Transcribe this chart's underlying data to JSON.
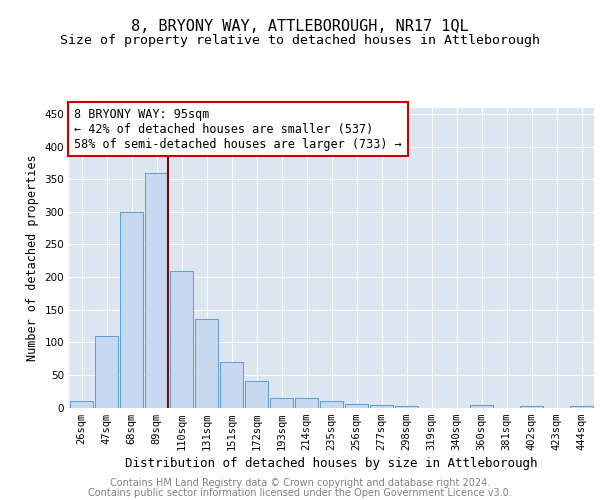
{
  "title": "8, BRYONY WAY, ATTLEBOROUGH, NR17 1QL",
  "subtitle": "Size of property relative to detached houses in Attleborough",
  "xlabel": "Distribution of detached houses by size in Attleborough",
  "ylabel": "Number of detached properties",
  "bar_labels": [
    "26sqm",
    "47sqm",
    "68sqm",
    "89sqm",
    "110sqm",
    "131sqm",
    "151sqm",
    "172sqm",
    "193sqm",
    "214sqm",
    "235sqm",
    "256sqm",
    "277sqm",
    "298sqm",
    "319sqm",
    "340sqm",
    "360sqm",
    "381sqm",
    "402sqm",
    "423sqm",
    "444sqm"
  ],
  "bar_values": [
    10,
    110,
    300,
    360,
    210,
    135,
    70,
    40,
    15,
    15,
    10,
    5,
    4,
    2,
    0,
    0,
    4,
    0,
    3,
    0,
    3
  ],
  "bar_color": "#c6d9f0",
  "bar_edgecolor": "#5b9bd5",
  "background_color": "#dce6f1",
  "annotation_box_text": "8 BRYONY WAY: 95sqm\n← 42% of detached houses are smaller (537)\n58% of semi-detached houses are larger (733) →",
  "redline_x": 3.47,
  "ylim": [
    0,
    460
  ],
  "yticks": [
    0,
    50,
    100,
    150,
    200,
    250,
    300,
    350,
    400,
    450
  ],
  "footer_line1": "Contains HM Land Registry data © Crown copyright and database right 2024.",
  "footer_line2": "Contains public sector information licensed under the Open Government Licence v3.0.",
  "title_fontsize": 11,
  "subtitle_fontsize": 9.5,
  "xlabel_fontsize": 9,
  "ylabel_fontsize": 8.5,
  "tick_fontsize": 7.5,
  "annotation_fontsize": 8.5,
  "footer_fontsize": 7
}
